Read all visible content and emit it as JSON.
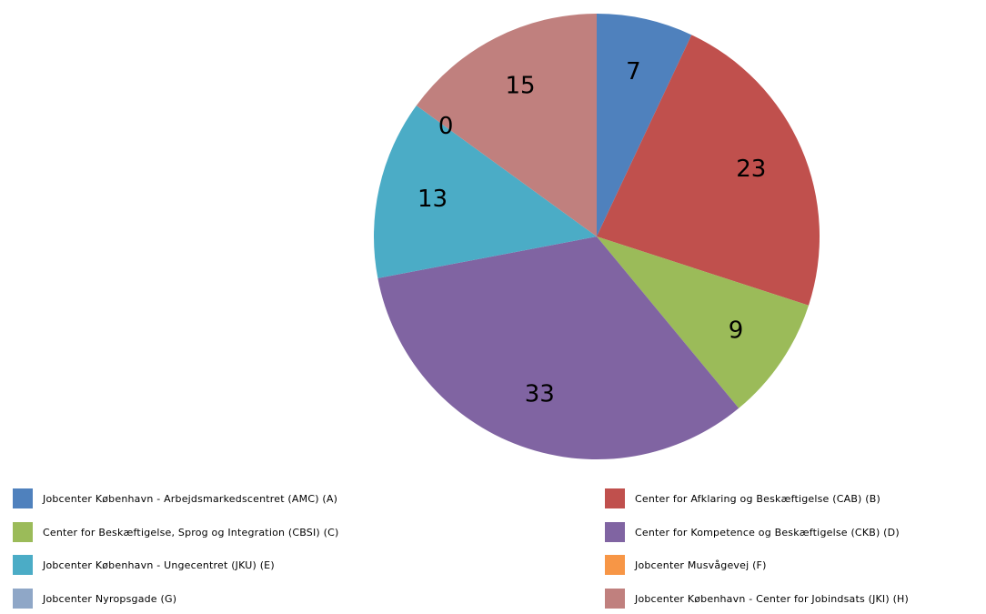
{
  "chart_data": {
    "type": "pie",
    "title": "",
    "start_angle_deg": 0,
    "direction": "clockwise",
    "categories": [
      "Jobcenter København - Arbejdsmarkedscentret (AMC) (A)",
      "Center for Afklaring og Beskæftigelse (CAB) (B)",
      "Center for Beskæftigelse, Sprog og Integration (CBSI) (C)",
      "Center for Kompetence og Beskæftigelse (CKB) (D)",
      "Jobcenter København - Ungecentret (JKU) (E)",
      "Jobcenter Musvågevej (F)",
      "Jobcenter Nyropsgade (G)",
      "Jobcenter København - Center for Jobindsats (JKI) (H)"
    ],
    "values": [
      7,
      23,
      9,
      33,
      13,
      0,
      0,
      15
    ],
    "data_labels": [
      "7",
      "23",
      "9",
      "33",
      "13",
      "0",
      "",
      "15"
    ],
    "colors": [
      "#4f81bd",
      "#c0504d",
      "#9bbb59",
      "#8064a2",
      "#4bacc6",
      "#f79646",
      "#8fa7c7",
      "#c0807e"
    ],
    "legend_position": "bottom"
  }
}
